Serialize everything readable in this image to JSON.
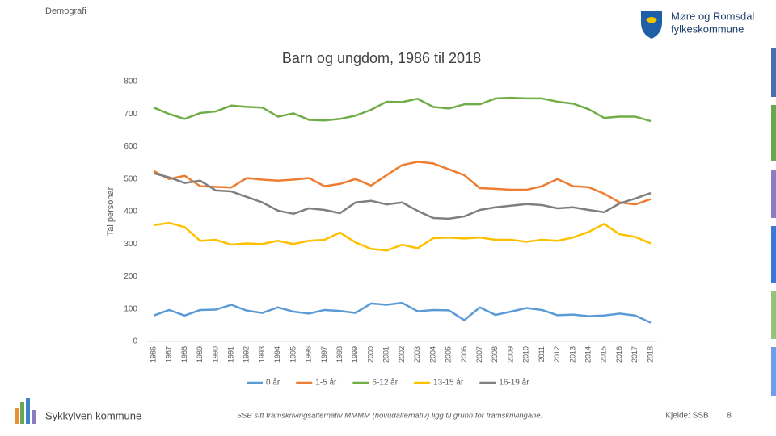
{
  "header": {
    "section": "Demografi",
    "logo_text_1": "Møre og Romsdal",
    "logo_text_2": "fylkeskommune"
  },
  "footer": {
    "municipality": "Sykkylven kommune",
    "note": "SSB sitt framskrivingsalternativ MMMM (hovudalternativ) ligg til grunn for framskrivingane.",
    "source": "Kjelde: SSB",
    "page": "8"
  },
  "chart_data": {
    "type": "line",
    "title": "Barn og ungdom, 1986 til 2018",
    "y_label": "Tal personar",
    "categories": [
      "1986",
      "1987",
      "1988",
      "1989",
      "1990",
      "1991",
      "1992",
      "1993",
      "1994",
      "1995",
      "1996",
      "1997",
      "1998",
      "1999",
      "2000",
      "2001",
      "2002",
      "2003",
      "2004",
      "2005",
      "2006",
      "2007",
      "2008",
      "2009",
      "2010",
      "2011",
      "2012",
      "2013",
      "2014",
      "2015",
      "2016",
      "2017",
      "2018"
    ],
    "ylim": [
      0,
      800
    ],
    "yticks": [
      0,
      100,
      200,
      300,
      400,
      500,
      600,
      700,
      800
    ],
    "grid": false,
    "legend": "bottom",
    "series": [
      {
        "name": "0 år",
        "color": "#5b9bd5",
        "values": [
          80,
          97,
          80,
          97,
          98,
          113,
          95,
          88,
          105,
          92,
          86,
          97,
          94,
          88,
          117,
          113,
          119,
          93,
          97,
          96,
          66,
          105,
          82,
          92,
          103,
          97,
          81,
          83,
          78,
          80,
          86,
          80,
          58
        ]
      },
      {
        "name": "1-5 år",
        "color": "#ed7d31",
        "values": [
          525,
          500,
          510,
          478,
          476,
          474,
          503,
          498,
          495,
          498,
          503,
          478,
          485,
          500,
          480,
          512,
          543,
          553,
          548,
          530,
          512,
          472,
          470,
          467,
          467,
          478,
          500,
          478,
          475,
          455,
          428,
          422,
          438
        ]
      },
      {
        "name": "6-12 år",
        "color": "#70ad47",
        "values": [
          720,
          700,
          685,
          703,
          708,
          726,
          722,
          720,
          692,
          702,
          682,
          680,
          685,
          695,
          713,
          738,
          737,
          747,
          722,
          717,
          730,
          730,
          748,
          750,
          748,
          748,
          738,
          732,
          715,
          688,
          692,
          692,
          678
        ]
      },
      {
        "name": "13-15 år",
        "color": "#ffc000",
        "values": [
          358,
          365,
          352,
          310,
          313,
          298,
          302,
          300,
          310,
          300,
          310,
          313,
          335,
          305,
          285,
          280,
          298,
          287,
          318,
          320,
          317,
          320,
          313,
          313,
          307,
          313,
          310,
          320,
          337,
          362,
          330,
          322,
          302
        ]
      },
      {
        "name": "16-19 år",
        "color": "#7f7f7f",
        "values": [
          518,
          505,
          488,
          495,
          465,
          462,
          445,
          428,
          403,
          393,
          410,
          405,
          395,
          428,
          433,
          422,
          428,
          402,
          380,
          378,
          385,
          405,
          413,
          418,
          423,
          420,
          410,
          413,
          405,
          398,
          425,
          440,
          457
        ]
      }
    ]
  }
}
